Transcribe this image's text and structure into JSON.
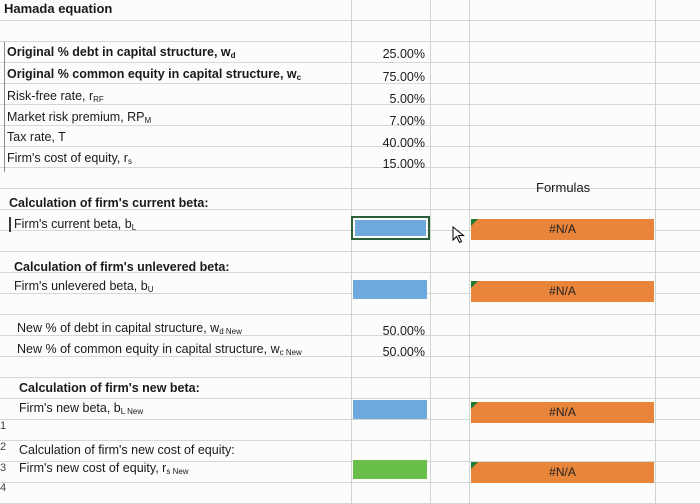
{
  "title": "Hamada equation",
  "inputs": [
    {
      "label": "Original % debt in capital structure, w",
      "sub": "d",
      "value": "25.00%"
    },
    {
      "label": "Original % common equity in capital structure, w",
      "sub": "c",
      "value": "75.00%"
    },
    {
      "label": "Risk-free rate, r",
      "sub": "RF",
      "value": "5.00%"
    },
    {
      "label": "Market risk premium, RP",
      "sub": "M",
      "value": "7.00%"
    },
    {
      "label": "Tax rate, T",
      "sub": "",
      "value": "40.00%"
    },
    {
      "label": "Firm's cost of equity, r",
      "sub": "s",
      "value": "15.00%"
    }
  ],
  "formulas_header": "Formulas",
  "current_beta": {
    "heading": "Calculation of firm's current beta:",
    "label": "Firm's current beta, b",
    "sub": "L",
    "formula": "#N/A"
  },
  "unlevered_beta": {
    "heading": "Calculation of firm's unlevered beta:",
    "label": "Firm's unlevered beta, b",
    "sub": "U",
    "formula": "#N/A"
  },
  "new_structure": [
    {
      "label": "New % of debt in capital structure, w",
      "sub": "d New",
      "value": "50.00%"
    },
    {
      "label": "New % of common equity in capital structure, w",
      "sub": "c New",
      "value": "50.00%"
    }
  ],
  "new_beta": {
    "heading": "Calculation of firm's new beta:",
    "label": "Firm's new beta, b",
    "sub": "L New",
    "formula": "#N/A"
  },
  "new_cost": {
    "heading": "Calculation of firm's new cost of equity:",
    "label": "Firm's new cost of equity, r",
    "sub": "s New",
    "formula": "#N/A"
  },
  "row_numbers": [
    "1",
    "2",
    "3",
    "4"
  ],
  "colors": {
    "blue": "#6fa8dc",
    "green": "#6abf4b",
    "orange": "#e8853a",
    "corner": "#1f7a33"
  }
}
